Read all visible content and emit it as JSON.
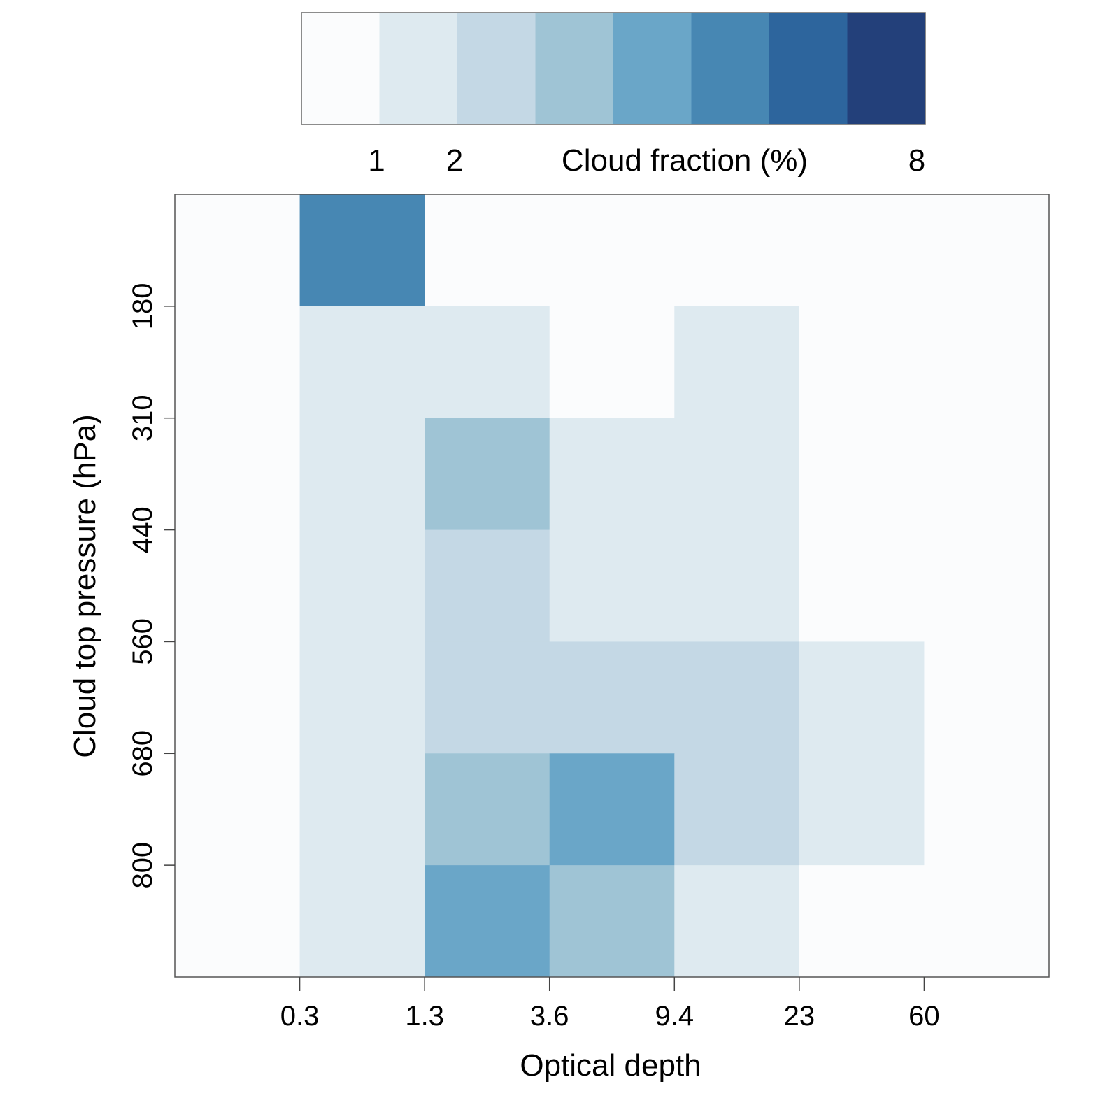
{
  "chart_data": {
    "type": "heatmap",
    "xlabel": "Optical depth",
    "ylabel": "Cloud top pressure (hPa)",
    "x_tick_labels": [
      "0.3",
      "1.3",
      "3.6",
      "9.4",
      "23",
      "60"
    ],
    "y_tick_labels": [
      "180",
      "310",
      "440",
      "560",
      "680",
      "800"
    ],
    "n_cols": 7,
    "n_rows": 7,
    "colorbar": {
      "title": "Cloud fraction (%)",
      "tick_labels": [
        {
          "label": "1",
          "level_boundary": 1
        },
        {
          "label": "2",
          "level_boundary": 2
        },
        {
          "label": "8",
          "level_boundary": 8
        }
      ],
      "colors": [
        "#fbfcfd",
        "#deeaf0",
        "#c4d8e5",
        "#9fc4d5",
        "#6aa6c8",
        "#4787b3",
        "#2d659d",
        "#23407a"
      ]
    },
    "z_level_rows_top_to_bottom": [
      [
        0,
        5,
        0,
        0,
        0,
        0,
        0
      ],
      [
        0,
        1,
        1,
        0,
        1,
        0,
        0
      ],
      [
        0,
        1,
        3,
        1,
        1,
        0,
        0
      ],
      [
        0,
        1,
        2,
        1,
        1,
        0,
        0
      ],
      [
        0,
        1,
        2,
        2,
        2,
        1,
        0
      ],
      [
        0,
        1,
        3,
        4,
        2,
        1,
        0
      ],
      [
        0,
        1,
        4,
        3,
        1,
        0,
        0
      ]
    ]
  }
}
